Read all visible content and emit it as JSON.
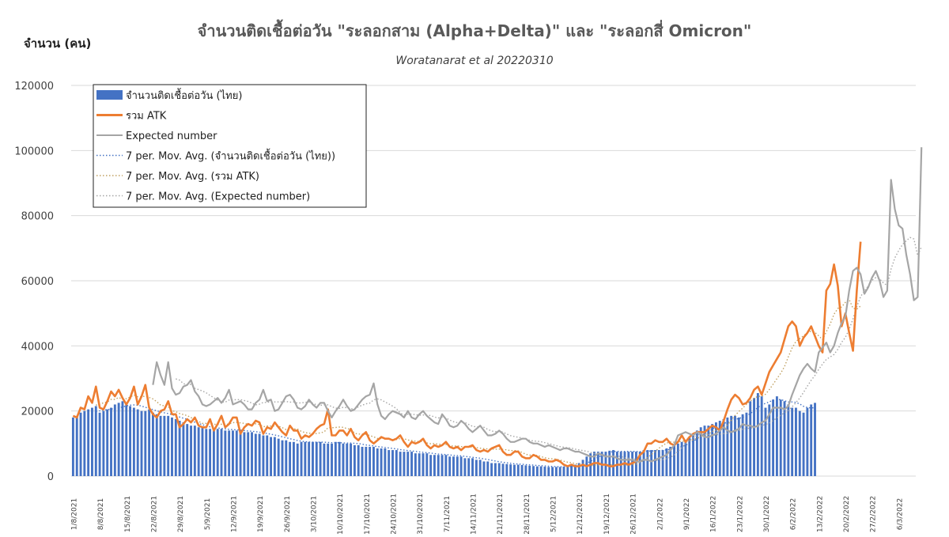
{
  "chart_data": {
    "type": "line",
    "title": "จำนวนติดเชื้อต่อวัน \"ระลอกสาม (Alpha+Delta)\" และ \"ระลอกสี่ Omicron\"",
    "subtitle": "Woratanarat et al 20220310",
    "ylabel": "จำนวน (คน)",
    "xlabel": "",
    "ylim": [
      0,
      120000
    ],
    "yticks": [
      0,
      20000,
      40000,
      60000,
      80000,
      100000,
      120000
    ],
    "grid": true,
    "legend_position": "top-left",
    "x_start": "1/8/2021",
    "x_end": "10/3/2022",
    "x_tick_labels": [
      "1/8/2021",
      "8/8/2021",
      "15/8/2021",
      "22/8/2021",
      "29/8/2021",
      "5/9/2021",
      "12/9/2021",
      "19/9/2021",
      "26/9/2021",
      "3/10/2021",
      "10/10/2021",
      "17/10/2021",
      "24/10/2021",
      "31/10/2021",
      "7/11/2021",
      "14/11/2021",
      "21/11/2021",
      "28/11/2021",
      "5/12/2021",
      "12/12/2021",
      "19/12/2021",
      "26/12/2021",
      "2/1/2022",
      "9/1/2022",
      "16/1/2022",
      "23/1/2022",
      "30/1/2022",
      "6/2/2022",
      "13/2/2022",
      "20/2/2022",
      "27/2/2022",
      "6/3/2022"
    ],
    "series": [
      {
        "name": "จำนวนติดเชื้อต่อวัน (ไทย)",
        "kind": "bar",
        "color": "#4472c4",
        "x_start": "1/8/2021",
        "values": [
          18000,
          18500,
          19500,
          20000,
          20500,
          21000,
          21500,
          19500,
          20000,
          20500,
          21000,
          22000,
          22500,
          23000,
          22000,
          21500,
          21000,
          20500,
          20000,
          20000,
          20500,
          19500,
          19000,
          18500,
          18500,
          18500,
          18000,
          17500,
          17000,
          16500,
          16000,
          15500,
          15500,
          15000,
          15000,
          14500,
          14500,
          14500,
          14500,
          14500,
          14000,
          14000,
          14000,
          14000,
          14000,
          13500,
          13500,
          13500,
          13000,
          13000,
          12500,
          12500,
          12000,
          12000,
          11500,
          11000,
          11000,
          10500,
          10500,
          10000,
          10500,
          10500,
          10500,
          10500,
          10500,
          10500,
          10000,
          10000,
          10000,
          10500,
          10500,
          10000,
          10000,
          10000,
          9500,
          9500,
          9000,
          9000,
          9000,
          9000,
          8500,
          8500,
          8500,
          8000,
          8000,
          8000,
          7500,
          7500,
          7500,
          7500,
          7000,
          7000,
          7000,
          7000,
          6500,
          6500,
          6500,
          6500,
          6500,
          6000,
          6000,
          6000,
          6000,
          5500,
          5500,
          5500,
          5000,
          5000,
          4500,
          4500,
          4000,
          4000,
          4000,
          3800,
          3700,
          3600,
          3500,
          3500,
          3400,
          3300,
          3200,
          3100,
          3000,
          3000,
          2900,
          2800,
          2800,
          2800,
          2800,
          2900,
          3000,
          3200,
          3500,
          4000,
          5000,
          6000,
          7000,
          7500,
          7500,
          7500,
          7500,
          7800,
          8000,
          7500,
          7500,
          7500,
          7500,
          7500,
          7500,
          7500,
          8000,
          8000,
          8000,
          8000,
          8000,
          8000,
          8500,
          9000,
          9500,
          10000,
          10500,
          11000,
          12000,
          13000,
          14000,
          15000,
          15500,
          15500,
          16000,
          16500,
          17000,
          17500,
          18000,
          18500,
          18500,
          18000,
          19000,
          19500,
          23000,
          24000,
          25500,
          24500,
          21000,
          22000,
          23500,
          24500,
          23500,
          23000,
          22000,
          21000,
          21000,
          20000,
          19500,
          21000,
          22000,
          22500
        ]
      },
      {
        "name": "รวม ATK",
        "kind": "line",
        "color": "#ed7d31",
        "x_start": "1/8/2021",
        "values": [
          18500,
          18000,
          21000,
          20500,
          24500,
          22500,
          27500,
          21000,
          20500,
          23000,
          26000,
          24500,
          26500,
          24000,
          22000,
          24000,
          27500,
          22000,
          24500,
          28000,
          21000,
          19000,
          18000,
          20000,
          20500,
          23000,
          19000,
          19000,
          15000,
          16000,
          17500,
          16500,
          18000,
          15500,
          15000,
          15000,
          17500,
          14000,
          16000,
          18500,
          15000,
          16000,
          18000,
          18000,
          13000,
          15000,
          16000,
          15500,
          17000,
          16500,
          13000,
          15000,
          14500,
          16500,
          15000,
          13500,
          12500,
          15500,
          14000,
          14000,
          11500,
          12500,
          12000,
          13000,
          14500,
          15500,
          16000,
          20500,
          12500,
          12500,
          14000,
          14000,
          12500,
          14500,
          12000,
          11000,
          12500,
          13500,
          11000,
          10000,
          11000,
          12000,
          11500,
          11500,
          11000,
          11500,
          12500,
          10500,
          9000,
          10500,
          10000,
          10500,
          11500,
          9500,
          8500,
          9500,
          9000,
          9500,
          10500,
          9000,
          8500,
          9000,
          8000,
          9000,
          9000,
          9500,
          8000,
          7500,
          8000,
          7500,
          8500,
          9000,
          9500,
          7500,
          6500,
          6500,
          7500,
          7500,
          6000,
          5500,
          5500,
          6500,
          6000,
          5000,
          5000,
          4500,
          4500,
          5000,
          4500,
          3500,
          3000,
          3500,
          3000,
          3000,
          3500,
          3000,
          3500,
          4000,
          4000,
          3500,
          3500,
          3000,
          3000,
          3500,
          3500,
          4000,
          3500,
          4000,
          4500,
          6500,
          7500,
          10000,
          10000,
          11000,
          10500,
          10500,
          11500,
          10000,
          9500,
          10500,
          12500,
          10500,
          12000,
          13000,
          13500,
          13500,
          13500,
          14500,
          15500,
          15000,
          14000,
          17000,
          20500,
          23500,
          25000,
          24000,
          22000,
          22500,
          24000,
          26500,
          27500,
          25000,
          28500,
          32000,
          34000,
          36000,
          38000,
          42000,
          46000,
          47500,
          46000,
          40000,
          42500,
          44000,
          46000,
          43000,
          40000,
          38000,
          57000,
          59000,
          65000,
          58500,
          46000,
          50000,
          44000,
          38500,
          57000,
          72000
        ]
      },
      {
        "name": "Expected number",
        "kind": "line",
        "color": "#a5a5a5",
        "x_start": "22/8/2021",
        "values": [
          28000,
          35000,
          31000,
          28000,
          35000,
          27000,
          25000,
          25500,
          27500,
          28000,
          29500,
          26000,
          24500,
          22000,
          21500,
          22000,
          23000,
          24000,
          22500,
          24000,
          26500,
          22000,
          22500,
          23000,
          22000,
          20500,
          20500,
          22500,
          23500,
          26500,
          23000,
          23500,
          20000,
          20500,
          22500,
          24500,
          25000,
          23500,
          21000,
          20500,
          21500,
          23500,
          22000,
          21000,
          22500,
          22500,
          20000,
          18000,
          20000,
          21500,
          23500,
          21500,
          20000,
          20500,
          22000,
          23500,
          24500,
          25000,
          28500,
          22000,
          18500,
          17500,
          19000,
          20000,
          19500,
          19000,
          18000,
          20000,
          18000,
          17500,
          19000,
          20000,
          18500,
          17500,
          16500,
          16000,
          19000,
          17500,
          15500,
          15000,
          15500,
          17000,
          16000,
          14500,
          13500,
          14500,
          15500,
          14000,
          12500,
          12500,
          13000,
          14000,
          13000,
          11500,
          10500,
          10500,
          11000,
          11500,
          11500,
          10500,
          10000,
          10000,
          9500,
          9000,
          9500,
          9000,
          8500,
          8000,
          8500,
          8500,
          8000,
          7500,
          7500,
          7000,
          6500,
          6000,
          6000,
          7000,
          6500,
          6000,
          6000,
          6000,
          5500,
          5000,
          5000,
          5000,
          5000,
          4500,
          4500,
          5000,
          5000,
          4500,
          5000,
          5500,
          6000,
          6500,
          8000,
          9500,
          12500,
          13000,
          13500,
          13000,
          12500,
          13500,
          13000,
          12000,
          12000,
          12500,
          13000,
          14000,
          15000,
          14000,
          13500,
          14000,
          14500,
          16000,
          15500,
          15500,
          15000,
          15500,
          16500,
          17000,
          19000,
          21000,
          21000,
          21000,
          20500,
          21500,
          25000,
          28000,
          31000,
          33000,
          34500,
          33000,
          32000,
          38000,
          39500,
          41000,
          38000,
          40000,
          44000,
          47000,
          49000,
          57000,
          63000,
          64000,
          62000,
          56000,
          58000,
          61000,
          63000,
          60000,
          55000,
          57000,
          91000,
          82000,
          77000,
          76000,
          68000,
          62000,
          54000,
          55000,
          101000
        ]
      }
    ],
    "moving_averages": [
      {
        "name": "7 per. Mov. Avg. (จำนวนติดเชื้อต่อวัน (ไทย))",
        "color": "#4472c4",
        "dotted": true,
        "of": 0
      },
      {
        "name": "7 per. Mov. Avg. (รวม ATK)",
        "color": "#c0a060",
        "dotted": true,
        "of": 1
      },
      {
        "name": "7 per. Mov. Avg. (Expected number)",
        "color": "#a5a5a5",
        "dotted": true,
        "of": 2
      }
    ]
  }
}
